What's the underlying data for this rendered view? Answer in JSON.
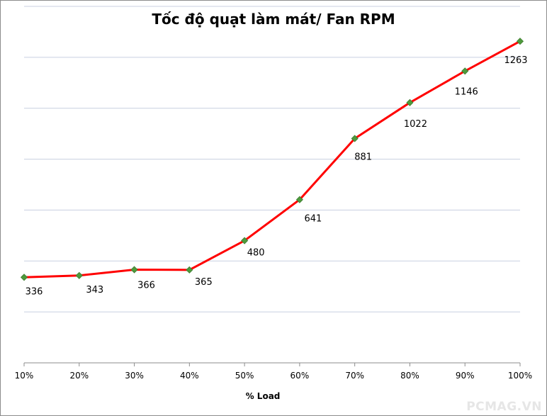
{
  "chart_data": {
    "type": "line",
    "title": "Tốc độ quạt làm mát/ Fan RPM",
    "xlabel": "% Load",
    "ylabel": "",
    "categories": [
      "10%",
      "20%",
      "30%",
      "40%",
      "50%",
      "60%",
      "70%",
      "80%",
      "90%",
      "100%"
    ],
    "series": [
      {
        "values": [
          336,
          343,
          366,
          365,
          480,
          641,
          881,
          1022,
          1146,
          1263
        ],
        "data_labels": [
          "336",
          "343",
          "366",
          "365",
          "480",
          "641",
          "881",
          "1022",
          "1146",
          "1263"
        ],
        "line_color": "#ff0000",
        "marker_color": "#4e9a3c"
      }
    ],
    "ylim": [
      0,
      1400
    ],
    "y_gridline_step": 200,
    "grid": true,
    "legend": "none",
    "gridline_color": "#c8cfe0"
  },
  "watermark": "PCMAG.VN"
}
